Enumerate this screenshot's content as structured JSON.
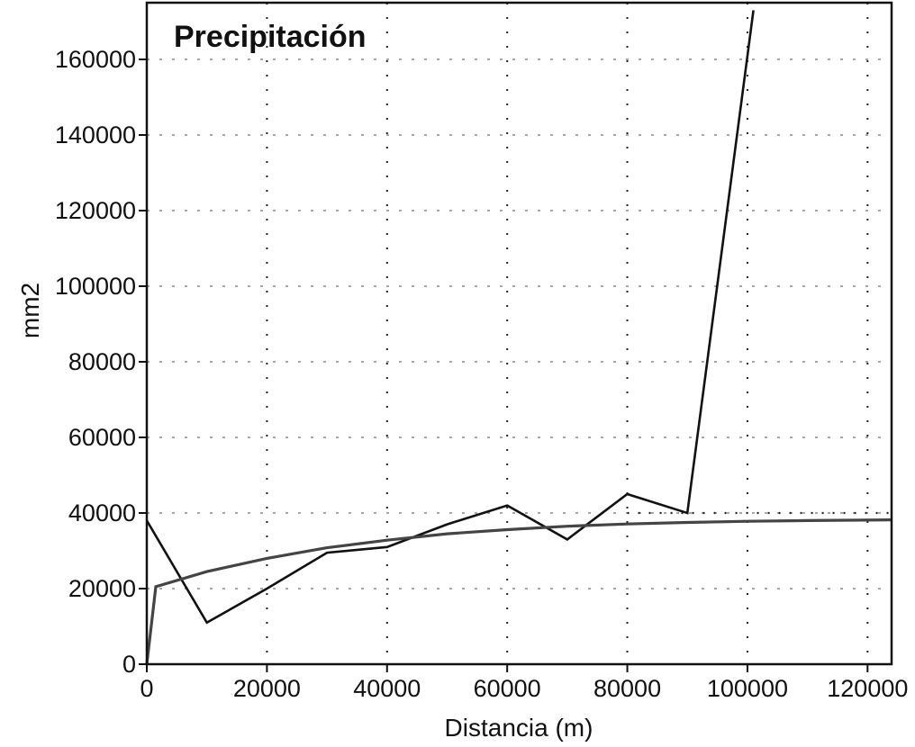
{
  "chart_data": {
    "type": "line",
    "title": "Precipitación",
    "xlabel": "Distancia (m)",
    "ylabel": "mm2",
    "xlim": [
      0,
      124000
    ],
    "ylim": [
      0,
      175000
    ],
    "x_ticks": [
      0,
      20000,
      40000,
      60000,
      80000,
      100000,
      120000
    ],
    "y_ticks": [
      0,
      20000,
      40000,
      60000,
      80000,
      100000,
      120000,
      140000,
      160000
    ],
    "x_tick_labels": [
      "0",
      "20000",
      "40000",
      "60000",
      "80000",
      "100000",
      "120000"
    ],
    "y_tick_labels": [
      "0",
      "20000",
      "40000",
      "60000",
      "80000",
      "100000",
      "120000",
      "140000",
      "160000"
    ],
    "grid": true,
    "legend": "none",
    "reference_line": {
      "y": 40000,
      "x_start": 80000,
      "x_end": 124000
    },
    "series": [
      {
        "style": "solid",
        "color": "#111111",
        "x": [
          0,
          10000,
          20000,
          30000,
          40000,
          50000,
          60000,
          70000,
          80000,
          90000,
          101000
        ],
        "y": [
          38000,
          11000,
          20000,
          29500,
          31000,
          37000,
          42000,
          33000,
          45000,
          40000,
          173000
        ]
      },
      {
        "style": "solid",
        "color": "#444444",
        "x": [
          0,
          1500,
          10000,
          20000,
          30000,
          40000,
          50000,
          60000,
          70000,
          80000,
          90000,
          100000,
          110000,
          124000
        ],
        "y": [
          0,
          20500,
          24500,
          28000,
          30800,
          32800,
          34500,
          35600,
          36500,
          37100,
          37500,
          37800,
          38000,
          38200
        ]
      }
    ]
  }
}
